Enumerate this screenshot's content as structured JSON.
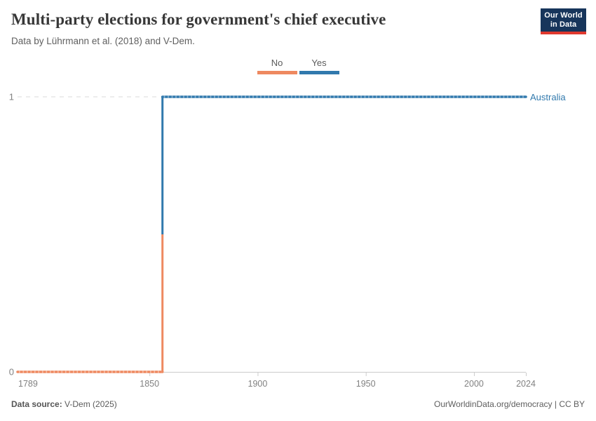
{
  "logo": {
    "line1": "Our World",
    "line2": "in Data",
    "bg_color": "#17355b",
    "accent_color": "#e0392e"
  },
  "footer": {
    "datasource_label": "Data source:",
    "datasource_value": " V-Dem (2025)",
    "attribution": "OurWorldinData.org/democracy | CC BY"
  },
  "chart_data": {
    "type": "line",
    "line_style": "step",
    "title": "Multi-party elections for government's chief executive",
    "subtitle": "Data by Lührmann et al. (2018) and V-Dem.",
    "entity": "Australia",
    "x_range": [
      1789,
      2024
    ],
    "y_range": [
      0,
      1
    ],
    "x_ticks": [
      {
        "year": 1789,
        "label": "1789",
        "mark": false,
        "anchor": "start"
      },
      {
        "year": 1850,
        "label": "1850",
        "mark": true,
        "anchor": "middle"
      },
      {
        "year": 1900,
        "label": "1900",
        "mark": true,
        "anchor": "middle"
      },
      {
        "year": 1950,
        "label": "1950",
        "mark": true,
        "anchor": "middle"
      },
      {
        "year": 2000,
        "label": "2000",
        "mark": true,
        "anchor": "middle"
      },
      {
        "year": 2024,
        "label": "2024",
        "mark": true,
        "anchor": "middle"
      }
    ],
    "y_ticks": [
      {
        "value": 0,
        "label": "0"
      },
      {
        "value": 1,
        "label": "1"
      }
    ],
    "gridline_values": [
      1
    ],
    "series": [
      {
        "name": "Australia",
        "steps": [
          {
            "from_year": 1789,
            "to_year": 1856,
            "value": 0,
            "category": "No",
            "color": "#ee8960"
          },
          {
            "from_year": 1856,
            "to_year": 2024,
            "value": 1,
            "category": "Yes",
            "color": "#3179ad"
          }
        ]
      }
    ],
    "legend": [
      {
        "label": "No",
        "value": 0,
        "color": "#ee8960"
      },
      {
        "label": "Yes",
        "value": 1,
        "color": "#3179ad"
      }
    ],
    "colors": {
      "axis": "#cccccc",
      "grid": "#dadada",
      "tick_label": "#818181",
      "entity_label": "#3179ad",
      "marker_overlay": "rgba(255,255,255,0.42)"
    }
  }
}
